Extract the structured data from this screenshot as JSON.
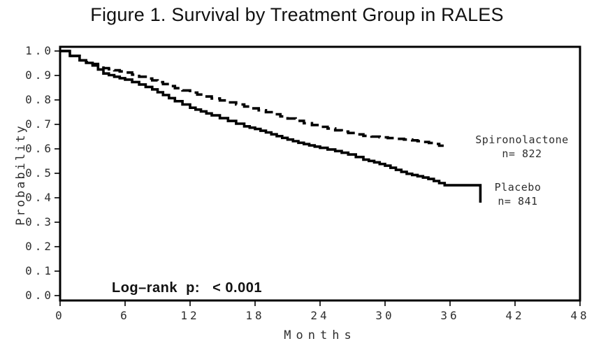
{
  "figure": {
    "title": "Figure 1. Survival by Treatment Group in RALES"
  },
  "chart_data": {
    "type": "line",
    "subtype": "kaplan-meier-survival-step",
    "title": "Figure 1. Survival by Treatment Group in RALES",
    "xlabel": "Months",
    "ylabel": "Probability",
    "xlim": [
      0,
      48
    ],
    "ylim": [
      0.0,
      1.0
    ],
    "x_ticks": [
      0,
      6,
      12,
      18,
      24,
      30,
      36,
      42,
      48
    ],
    "y_ticks": [
      "1.0",
      "0.9",
      "0.8",
      "0.7",
      "0.6",
      "0.5",
      "0.4",
      "0.3",
      "0.2",
      "0.1",
      "0.0"
    ],
    "grid": false,
    "legend_position": "right-inside",
    "annotation": "Log–rank  p:   < 0.001",
    "line_color": "#000000",
    "background_color": "#ffffff",
    "series": [
      {
        "name": "Spironolactone",
        "n": 822,
        "n_label": "n= 822",
        "style": "dashed",
        "x": [
          0,
          0.9,
          1.8,
          3,
          4,
          5,
          6,
          7.3,
          8.5,
          9.5,
          10.6,
          12,
          14,
          15.5,
          17,
          19,
          21,
          22.5,
          24,
          25.4,
          26.6,
          28,
          29.5,
          31,
          32.5,
          33.5,
          34.6,
          35.0,
          35.3
        ],
        "y": [
          1.0,
          0.98,
          0.962,
          0.947,
          0.93,
          0.921,
          0.912,
          0.895,
          0.88,
          0.865,
          0.848,
          0.83,
          0.806,
          0.79,
          0.773,
          0.75,
          0.724,
          0.705,
          0.69,
          0.676,
          0.665,
          0.653,
          0.647,
          0.641,
          0.635,
          0.628,
          0.62,
          0.613,
          0.608
        ]
      },
      {
        "name": "Placebo",
        "n": 841,
        "n_label": "n= 841",
        "style": "solid",
        "x": [
          0,
          0.9,
          1.8,
          3,
          4,
          5,
          6,
          7.3,
          8.5,
          9.5,
          10.6,
          12,
          13,
          14,
          15.5,
          17,
          18,
          19,
          20,
          21,
          22,
          23,
          24,
          25.4,
          26.6,
          28,
          29,
          30,
          31,
          32,
          33,
          34,
          35,
          35.5,
          38.7,
          38.8
        ],
        "y": [
          1.0,
          0.98,
          0.962,
          0.941,
          0.908,
          0.895,
          0.883,
          0.863,
          0.843,
          0.82,
          0.795,
          0.768,
          0.753,
          0.737,
          0.714,
          0.692,
          0.681,
          0.667,
          0.652,
          0.638,
          0.625,
          0.614,
          0.604,
          0.591,
          0.577,
          0.556,
          0.545,
          0.531,
          0.514,
          0.498,
          0.488,
          0.477,
          0.46,
          0.451,
          0.451,
          0.38
        ]
      }
    ]
  }
}
